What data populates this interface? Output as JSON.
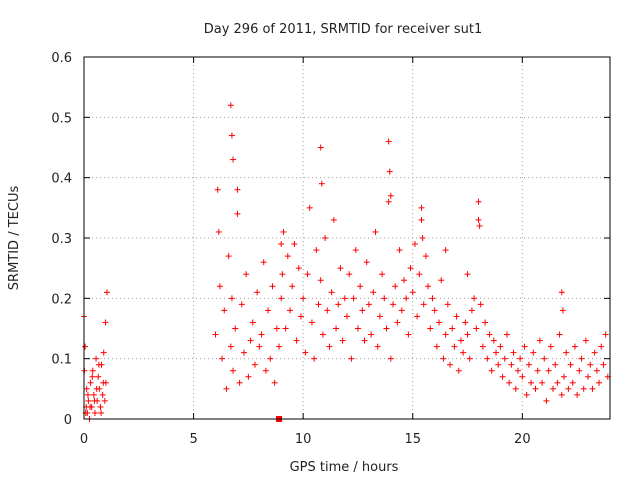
{
  "chart_data": {
    "type": "scatter",
    "title": "Day 296 of 2011, SRMTID for receiver sut1",
    "xlabel": "GPS time / hours",
    "ylabel": "SRMTID / TECUs",
    "xlim": [
      0,
      24
    ],
    "ylim": [
      0,
      0.6
    ],
    "xticks": [
      0,
      5,
      10,
      15,
      20
    ],
    "xtick_labels": [
      "0",
      "5",
      "10",
      "15",
      "20"
    ],
    "yticks": [
      0,
      0.1,
      0.2,
      0.3,
      0.4,
      0.5,
      0.6
    ],
    "ytick_labels": [
      "0",
      "0.1",
      "0.2",
      "0.3",
      "0.4",
      "0.5",
      "0.6"
    ],
    "grid": true,
    "marker": "plus",
    "color": "#ff0000",
    "series": [
      {
        "name": "sut1",
        "x": [
          0.0,
          0.05,
          0.1,
          0.12,
          0.15,
          0.2,
          0.25,
          0.3,
          0.35,
          0.4,
          0.45,
          0.5,
          0.55,
          0.6,
          0.65,
          0.7,
          0.75,
          0.8,
          0.85,
          0.9,
          0.95,
          1.0,
          1.05,
          0.02,
          0.08,
          0.18,
          0.28,
          0.38,
          0.48,
          0.58,
          0.68,
          0.78,
          0.88,
          0.98,
          6.0,
          6.1,
          6.15,
          6.2,
          6.3,
          6.4,
          6.5,
          6.6,
          6.7,
          6.75,
          6.8,
          6.9,
          7.0,
          7.1,
          7.2,
          7.3,
          7.4,
          7.5,
          7.6,
          7.7,
          7.8,
          7.9,
          8.0,
          8.1,
          8.2,
          8.3,
          8.4,
          8.5,
          8.6,
          8.7,
          8.8,
          8.9,
          9.0,
          9.1,
          9.2,
          9.3,
          9.4,
          9.5,
          9.6,
          9.7,
          9.8,
          9.9,
          10.0,
          10.1,
          10.2,
          10.3,
          10.4,
          10.5,
          10.6,
          10.7,
          10.8,
          10.9,
          11.0,
          11.1,
          11.2,
          11.3,
          11.4,
          11.5,
          11.6,
          11.7,
          11.8,
          11.9,
          12.0,
          12.1,
          12.2,
          12.3,
          12.4,
          12.5,
          12.6,
          12.7,
          12.8,
          12.9,
          13.0,
          13.1,
          13.2,
          13.3,
          13.4,
          13.5,
          13.6,
          13.7,
          13.8,
          13.9,
          14.0,
          14.1,
          14.2,
          14.3,
          14.4,
          14.5,
          14.6,
          14.7,
          14.8,
          14.9,
          15.0,
          15.1,
          15.2,
          15.3,
          15.4,
          15.5,
          15.6,
          15.7,
          15.8,
          15.9,
          16.0,
          16.1,
          16.2,
          16.3,
          16.4,
          16.5,
          16.6,
          16.7,
          16.8,
          16.9,
          17.0,
          17.1,
          17.2,
          17.3,
          17.4,
          17.5,
          17.6,
          17.7,
          17.8,
          17.9,
          18.0,
          18.1,
          18.2,
          18.3,
          18.4,
          18.5,
          18.6,
          18.7,
          18.8,
          18.9,
          19.0,
          19.1,
          19.2,
          19.3,
          19.4,
          19.5,
          19.6,
          19.7,
          19.8,
          19.9,
          20.0,
          20.1,
          20.2,
          20.3,
          20.4,
          20.5,
          20.6,
          20.7,
          20.8,
          20.9,
          21.0,
          21.1,
          21.2,
          21.3,
          21.4,
          21.5,
          21.6,
          21.7,
          21.8,
          21.9,
          22.0,
          22.1,
          22.2,
          22.3,
          22.4,
          22.5,
          22.6,
          22.7,
          22.8,
          22.9,
          23.0,
          23.1,
          23.2,
          23.3,
          23.4,
          23.5,
          23.6,
          23.7,
          23.8,
          23.9,
          6.7,
          6.75,
          6.8,
          7.0,
          10.8,
          10.85,
          13.9,
          13.95,
          14.0,
          18.0,
          18.05,
          21.8,
          21.85,
          9.0,
          9.05,
          15.4,
          15.45,
          16.5,
          17.5
        ],
        "y": [
          0.17,
          0.12,
          0.02,
          0.05,
          0.01,
          0.03,
          0.0,
          0.06,
          0.02,
          0.08,
          0.04,
          0.01,
          0.1,
          0.03,
          0.07,
          0.05,
          0.02,
          0.09,
          0.04,
          0.11,
          0.03,
          0.06,
          0.21,
          0.08,
          0.01,
          0.04,
          0.02,
          0.07,
          0.03,
          0.05,
          0.09,
          0.01,
          0.06,
          0.16,
          0.14,
          0.38,
          0.31,
          0.22,
          0.1,
          0.18,
          0.05,
          0.27,
          0.12,
          0.2,
          0.08,
          0.15,
          0.34,
          0.06,
          0.19,
          0.11,
          0.24,
          0.07,
          0.13,
          0.16,
          0.09,
          0.21,
          0.12,
          0.14,
          0.26,
          0.08,
          0.18,
          0.1,
          0.22,
          0.06,
          0.15,
          0.12,
          0.2,
          0.31,
          0.15,
          0.27,
          0.18,
          0.22,
          0.29,
          0.13,
          0.25,
          0.17,
          0.2,
          0.11,
          0.24,
          0.35,
          0.16,
          0.1,
          0.28,
          0.19,
          0.23,
          0.14,
          0.3,
          0.18,
          0.12,
          0.21,
          0.33,
          0.15,
          0.19,
          0.25,
          0.13,
          0.2,
          0.17,
          0.24,
          0.1,
          0.2,
          0.28,
          0.15,
          0.22,
          0.18,
          0.13,
          0.26,
          0.19,
          0.14,
          0.21,
          0.31,
          0.12,
          0.17,
          0.24,
          0.2,
          0.15,
          0.36,
          0.1,
          0.19,
          0.22,
          0.16,
          0.28,
          0.18,
          0.23,
          0.2,
          0.14,
          0.25,
          0.21,
          0.29,
          0.17,
          0.24,
          0.33,
          0.19,
          0.27,
          0.22,
          0.15,
          0.2,
          0.18,
          0.12,
          0.16,
          0.23,
          0.1,
          0.14,
          0.19,
          0.09,
          0.15,
          0.12,
          0.17,
          0.08,
          0.13,
          0.11,
          0.16,
          0.14,
          0.1,
          0.18,
          0.2,
          0.15,
          0.33,
          0.19,
          0.12,
          0.16,
          0.1,
          0.14,
          0.08,
          0.13,
          0.11,
          0.09,
          0.12,
          0.07,
          0.1,
          0.14,
          0.06,
          0.09,
          0.11,
          0.05,
          0.08,
          0.1,
          0.07,
          0.12,
          0.04,
          0.09,
          0.06,
          0.11,
          0.05,
          0.08,
          0.13,
          0.06,
          0.1,
          0.03,
          0.08,
          0.12,
          0.05,
          0.09,
          0.06,
          0.14,
          0.04,
          0.07,
          0.11,
          0.05,
          0.09,
          0.06,
          0.12,
          0.04,
          0.08,
          0.1,
          0.05,
          0.13,
          0.07,
          0.09,
          0.05,
          0.11,
          0.08,
          0.06,
          0.12,
          0.09,
          0.14,
          0.07,
          0.52,
          0.47,
          0.43,
          0.38,
          0.45,
          0.39,
          0.46,
          0.41,
          0.37,
          0.36,
          0.32,
          0.21,
          0.18,
          0.29,
          0.24,
          0.35,
          0.3,
          0.28,
          0.24
        ]
      }
    ],
    "annotations": [
      {
        "type": "square-marker",
        "x": 8.9,
        "y": 0.0
      }
    ]
  }
}
